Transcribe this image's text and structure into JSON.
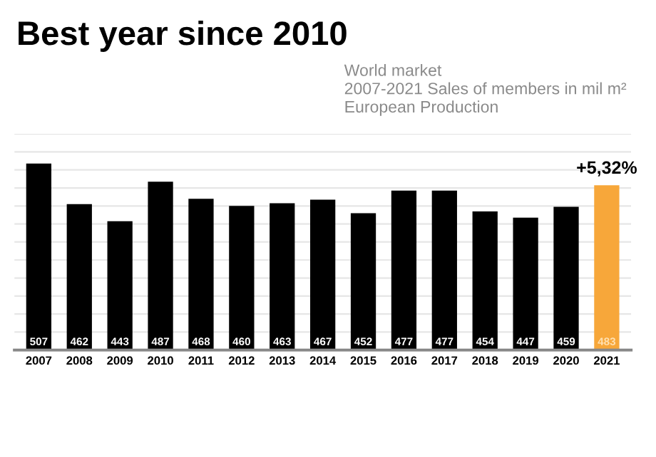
{
  "chart_data": {
    "type": "bar",
    "title": "Best year since 2010",
    "subtitle": "World market\n2007-2021 Sales of members in mil m²\nEuropean Production",
    "categories": [
      "2007",
      "2008",
      "2009",
      "2010",
      "2011",
      "2012",
      "2013",
      "2014",
      "2015",
      "2016",
      "2017",
      "2018",
      "2019",
      "2020",
      "2021"
    ],
    "values": [
      507,
      462,
      443,
      487,
      468,
      460,
      463,
      467,
      452,
      477,
      477,
      454,
      447,
      459,
      483
    ],
    "colors": [
      "#000000",
      "#000000",
      "#000000",
      "#000000",
      "#000000",
      "#000000",
      "#000000",
      "#000000",
      "#000000",
      "#000000",
      "#000000",
      "#000000",
      "#000000",
      "#000000",
      "#f7a73a"
    ],
    "data_labels": true,
    "annotations": [
      {
        "text": "+5,32%",
        "x": "2021",
        "y": 483
      }
    ],
    "ylim": [
      300,
      540
    ],
    "yticks": [
      {
        "value": 320,
        "label": null
      },
      {
        "value": 340,
        "label": null
      },
      {
        "value": 360,
        "label": null
      },
      {
        "value": 380,
        "label": null
      },
      {
        "value": 400,
        "label": null
      },
      {
        "value": 420,
        "label": null
      },
      {
        "value": 440,
        "label": null
      },
      {
        "value": 460,
        "label": null
      },
      {
        "value": 480,
        "label": null
      },
      {
        "value": 500,
        "label": null
      },
      {
        "value": 520,
        "label": null
      },
      {
        "value": 540,
        "label": null
      }
    ],
    "tick_labels": "x",
    "grid": "y"
  }
}
